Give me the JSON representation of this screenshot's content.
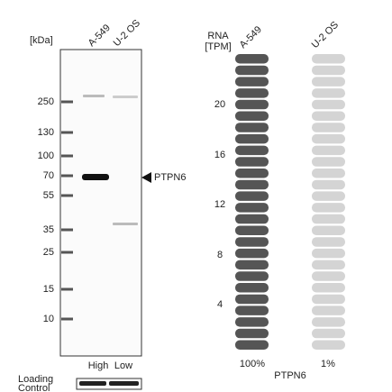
{
  "western_blot": {
    "unit_label": "[kDa]",
    "lanes": [
      "A-549",
      "U-2 OS"
    ],
    "markers": [
      "250",
      "130",
      "100",
      "70",
      "55",
      "35",
      "25",
      "15",
      "10"
    ],
    "target": "PTPN6",
    "lane_levels": [
      "High",
      "Low"
    ],
    "loading_control": [
      "Loading",
      "Control"
    ]
  },
  "rna": {
    "axis_title": [
      "RNA",
      "[TPM]"
    ],
    "lanes": [
      "A-549",
      "U-2 OS"
    ],
    "axis_labels": [
      "20",
      "16",
      "12",
      "8",
      "4"
    ],
    "percentages": [
      "100%",
      "1%"
    ],
    "gene": "PTPN6"
  }
}
